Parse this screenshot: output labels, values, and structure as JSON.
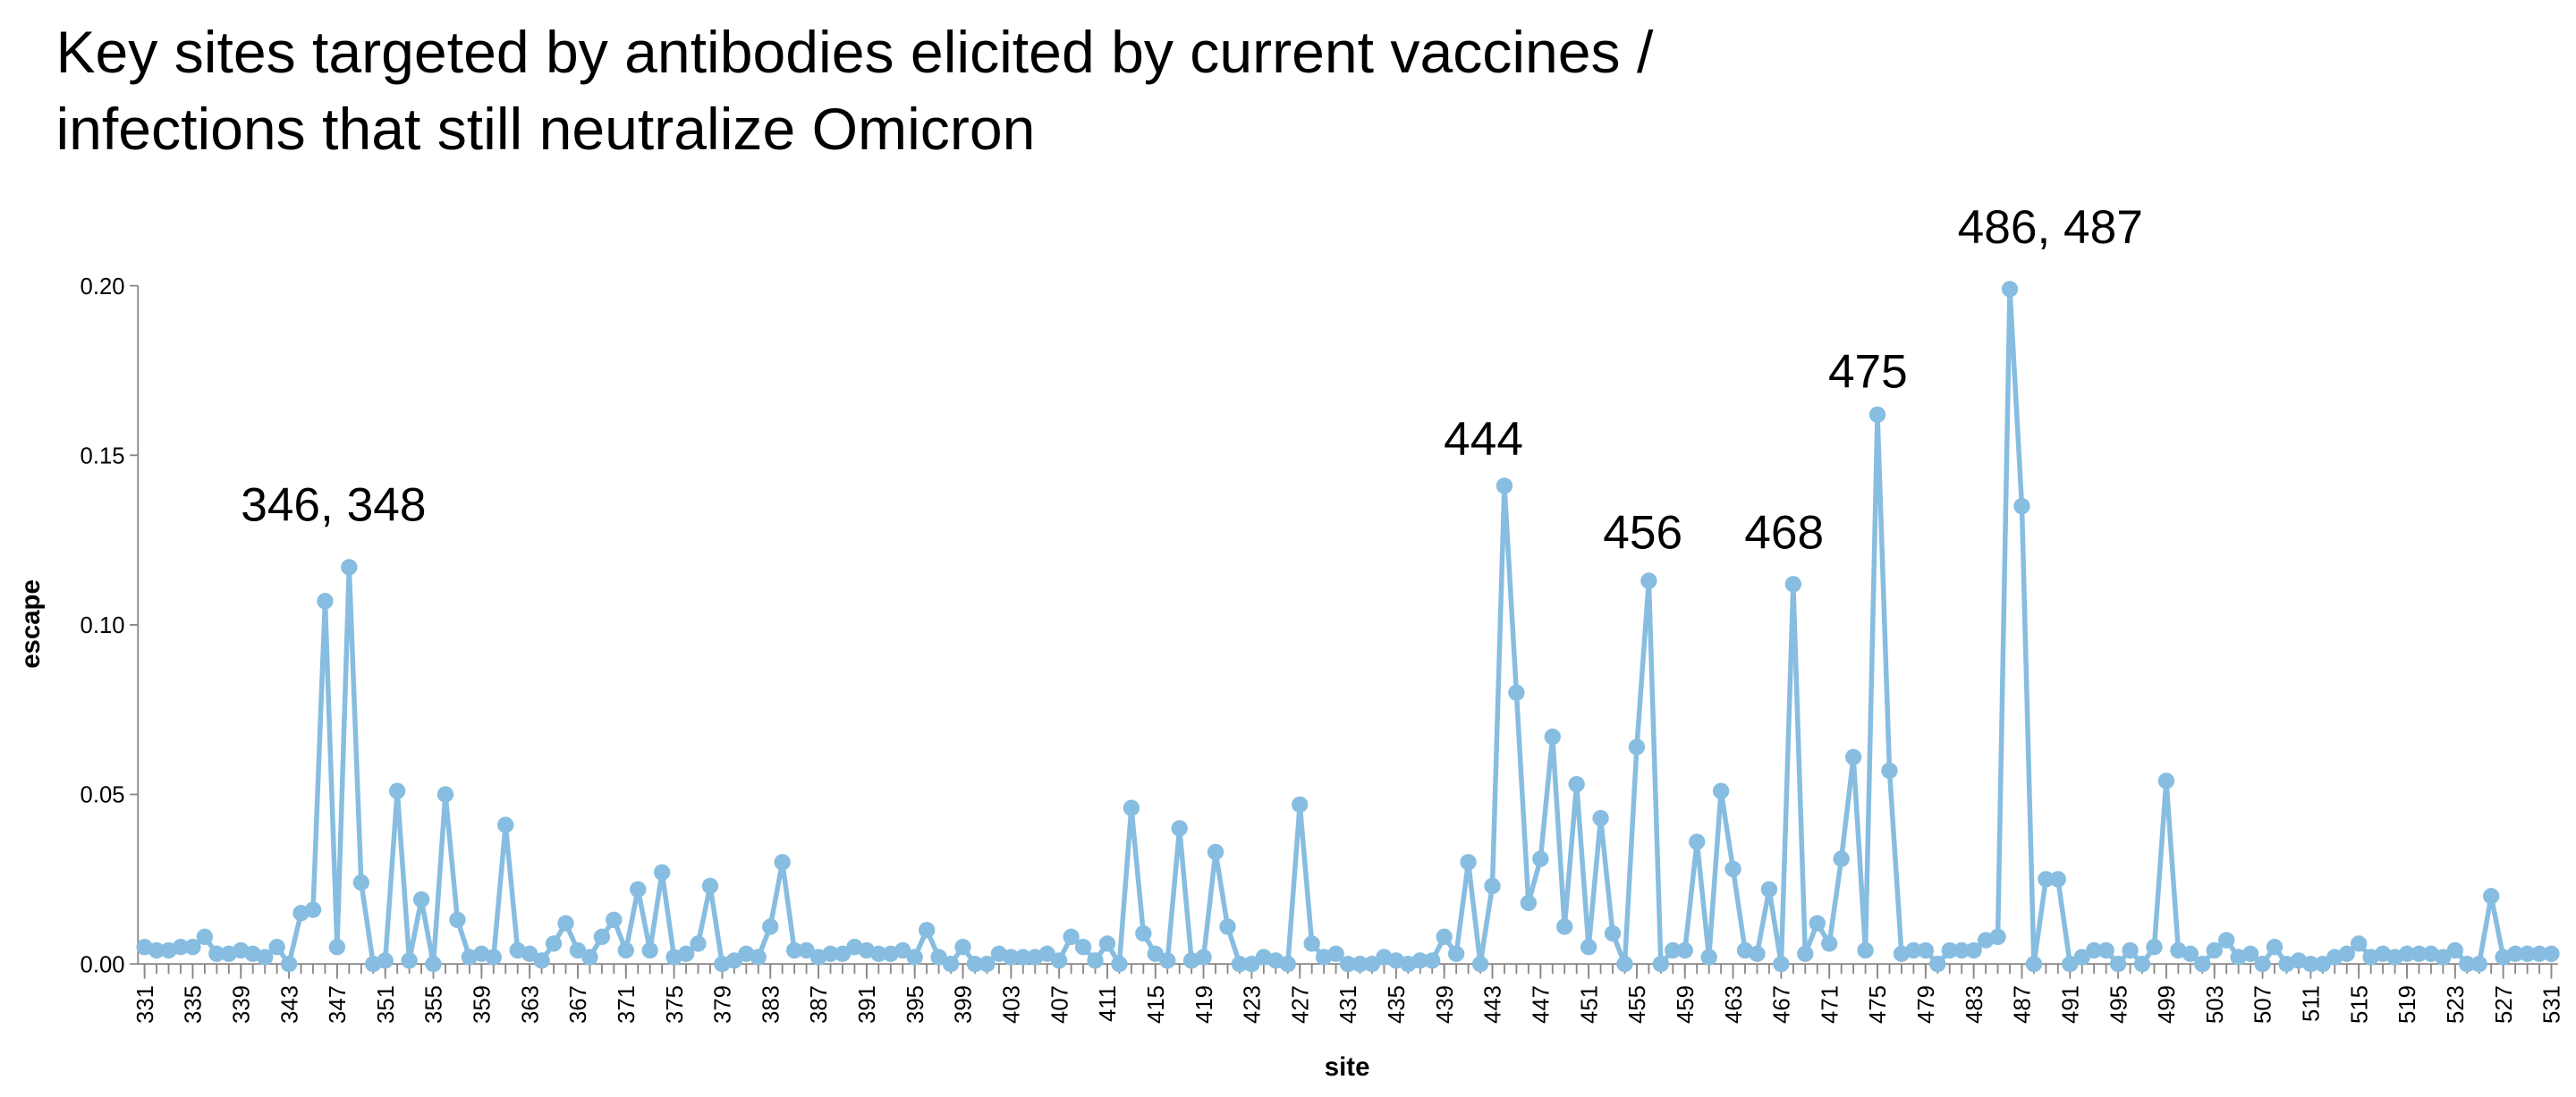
{
  "chart_data": {
    "type": "line",
    "title": [
      "Key sites targeted by antibodies elicited by current vaccines /",
      "infections that still neutralize Omicron"
    ],
    "x_label": "site",
    "y_label": "escape",
    "color": "#87bde0",
    "annotations": [
      "346, 348",
      "444",
      "456",
      "468",
      "475",
      "486, 487"
    ],
    "xlim": [
      331,
      531
    ],
    "ylim": [
      0,
      0.2
    ],
    "yticks": [
      {
        "value": 0,
        "label": "0.00"
      },
      {
        "value": 0.05,
        "label": "0.05"
      },
      {
        "value": 0.1,
        "label": "0.10"
      },
      {
        "value": 0.15,
        "label": "0.15"
      },
      {
        "value": 0.2,
        "label": "0.20"
      }
    ],
    "xticks": [
      331,
      335,
      339,
      343,
      347,
      351,
      355,
      359,
      363,
      367,
      371,
      375,
      379,
      383,
      387,
      391,
      395,
      399,
      403,
      407,
      411,
      415,
      419,
      423,
      427,
      431,
      435,
      439,
      443,
      447,
      451,
      455,
      459,
      463,
      467,
      471,
      475,
      479,
      483,
      487,
      491,
      495,
      499,
      503,
      507,
      511,
      515,
      519,
      523,
      527,
      531
    ],
    "x": [
      331,
      332,
      333,
      334,
      335,
      336,
      337,
      338,
      339,
      340,
      341,
      342,
      343,
      344,
      345,
      346,
      347,
      348,
      349,
      350,
      351,
      352,
      353,
      354,
      355,
      356,
      357,
      358,
      359,
      360,
      361,
      362,
      363,
      364,
      365,
      366,
      367,
      368,
      369,
      370,
      371,
      372,
      373,
      374,
      375,
      376,
      377,
      378,
      379,
      380,
      381,
      382,
      383,
      384,
      385,
      386,
      387,
      388,
      389,
      390,
      391,
      392,
      393,
      394,
      395,
      396,
      397,
      398,
      399,
      400,
      401,
      402,
      403,
      404,
      405,
      406,
      407,
      408,
      409,
      410,
      411,
      412,
      413,
      414,
      415,
      416,
      417,
      418,
      419,
      420,
      421,
      422,
      423,
      424,
      425,
      426,
      427,
      428,
      429,
      430,
      431,
      432,
      433,
      434,
      435,
      436,
      437,
      438,
      439,
      440,
      441,
      442,
      443,
      444,
      445,
      446,
      447,
      448,
      449,
      450,
      451,
      452,
      453,
      454,
      455,
      456,
      457,
      458,
      459,
      460,
      461,
      462,
      463,
      464,
      465,
      466,
      467,
      468,
      469,
      470,
      471,
      472,
      473,
      474,
      475,
      476,
      477,
      478,
      479,
      480,
      481,
      482,
      483,
      484,
      485,
      486,
      487,
      488,
      489,
      490,
      491,
      492,
      493,
      494,
      495,
      496,
      497,
      498,
      499,
      500,
      501,
      502,
      503,
      504,
      505,
      506,
      507,
      508,
      509,
      510,
      511,
      512,
      513,
      514,
      515,
      516,
      517,
      518,
      519,
      520,
      521,
      522,
      523,
      524,
      525,
      526,
      527,
      528,
      529,
      530,
      531
    ],
    "values": [
      0.005,
      0.004,
      0.004,
      0.005,
      0.005,
      0.008,
      0.003,
      0.003,
      0.004,
      0.003,
      0.002,
      0.005,
      0.0,
      0.015,
      0.016,
      0.107,
      0.005,
      0.117,
      0.024,
      0.0,
      0.001,
      0.051,
      0.001,
      0.019,
      0.0,
      0.05,
      0.013,
      0.002,
      0.003,
      0.002,
      0.041,
      0.004,
      0.003,
      0.001,
      0.006,
      0.012,
      0.004,
      0.002,
      0.008,
      0.013,
      0.004,
      0.022,
      0.004,
      0.027,
      0.002,
      0.003,
      0.006,
      0.023,
      0.0,
      0.001,
      0.003,
      0.002,
      0.011,
      0.03,
      0.004,
      0.004,
      0.002,
      0.003,
      0.003,
      0.005,
      0.004,
      0.003,
      0.003,
      0.004,
      0.002,
      0.01,
      0.002,
      0.0,
      0.005,
      0.0,
      0.0,
      0.003,
      0.002,
      0.002,
      0.002,
      0.003,
      0.001,
      0.008,
      0.005,
      0.001,
      0.006,
      0.0,
      0.046,
      0.009,
      0.003,
      0.001,
      0.04,
      0.001,
      0.002,
      0.033,
      0.011,
      0.0,
      0.0,
      0.002,
      0.001,
      0.0,
      0.047,
      0.006,
      0.002,
      0.003,
      0.0,
      0.0,
      0.0,
      0.002,
      0.001,
      0.0,
      0.001,
      0.001,
      0.008,
      0.003,
      0.03,
      0.0,
      0.023,
      0.141,
      0.08,
      0.018,
      0.031,
      0.067,
      0.011,
      0.053,
      0.005,
      0.043,
      0.009,
      0.0,
      0.064,
      0.113,
      0.0,
      0.004,
      0.004,
      0.036,
      0.002,
      0.051,
      0.028,
      0.004,
      0.003,
      0.022,
      0.0,
      0.112,
      0.003,
      0.012,
      0.006,
      0.031,
      0.061,
      0.004,
      0.162,
      0.057,
      0.003,
      0.004,
      0.004,
      0.0,
      0.004,
      0.004,
      0.004,
      0.007,
      0.008,
      0.199,
      0.135,
      0.0,
      0.025,
      0.025,
      0.0,
      0.002,
      0.004,
      0.004,
      0.0,
      0.004,
      0.0,
      0.005,
      0.054,
      0.004,
      0.003,
      0.0,
      0.004,
      0.007,
      0.002,
      0.003,
      0.0,
      0.005,
      0.0,
      0.001,
      0.0,
      0.0,
      0.002,
      0.003,
      0.006,
      0.002,
      0.003,
      0.002,
      0.003,
      0.003,
      0.003,
      0.002,
      0.004,
      0.0,
      0.0,
      0.02,
      0.002,
      0.003,
      0.003,
      0.003,
      0.003
    ]
  }
}
